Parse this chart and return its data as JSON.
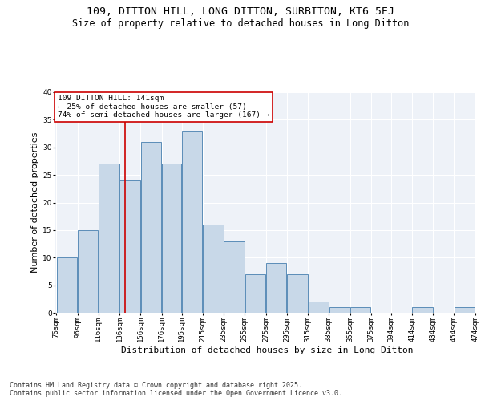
{
  "title_line1": "109, DITTON HILL, LONG DITTON, SURBITON, KT6 5EJ",
  "title_line2": "Size of property relative to detached houses in Long Ditton",
  "xlabel": "Distribution of detached houses by size in Long Ditton",
  "ylabel": "Number of detached properties",
  "bar_left_edges": [
    76,
    96,
    116,
    136,
    156,
    176,
    195,
    215,
    235,
    255,
    275,
    295,
    315,
    335,
    355,
    375,
    394,
    414,
    434,
    454
  ],
  "bar_widths": [
    20,
    20,
    20,
    20,
    20,
    19,
    20,
    20,
    20,
    20,
    20,
    20,
    20,
    20,
    20,
    19,
    20,
    20,
    20,
    20
  ],
  "bar_heights": [
    10,
    15,
    27,
    24,
    31,
    27,
    33,
    16,
    13,
    7,
    9,
    7,
    2,
    1,
    1,
    0,
    0,
    1,
    0,
    1
  ],
  "tick_labels": [
    "76sqm",
    "96sqm",
    "116sqm",
    "136sqm",
    "156sqm",
    "176sqm",
    "195sqm",
    "215sqm",
    "235sqm",
    "255sqm",
    "275sqm",
    "295sqm",
    "315sqm",
    "335sqm",
    "355sqm",
    "375sqm",
    "394sqm",
    "414sqm",
    "434sqm",
    "454sqm",
    "474sqm"
  ],
  "bar_color": "#c8d8e8",
  "bar_edge_color": "#5b8db8",
  "background_color": "#eef2f8",
  "grid_color": "#ffffff",
  "vline_x": 141,
  "vline_color": "#cc0000",
  "annotation_text": "109 DITTON HILL: 141sqm\n← 25% of detached houses are smaller (57)\n74% of semi-detached houses are larger (167) →",
  "annotation_box_color": "#cc0000",
  "ylim": [
    0,
    40
  ],
  "yticks": [
    0,
    5,
    10,
    15,
    20,
    25,
    30,
    35,
    40
  ],
  "footer_text": "Contains HM Land Registry data © Crown copyright and database right 2025.\nContains public sector information licensed under the Open Government Licence v3.0.",
  "title_fontsize": 9.5,
  "subtitle_fontsize": 8.5,
  "axis_label_fontsize": 8,
  "tick_fontsize": 6.5,
  "footer_fontsize": 6,
  "annotation_fontsize": 6.8
}
